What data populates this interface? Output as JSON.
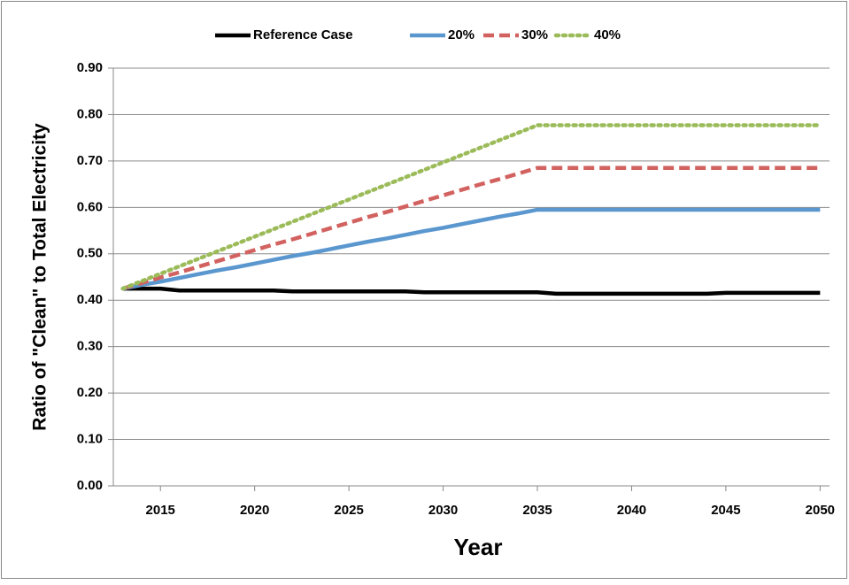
{
  "chart_data": {
    "type": "line",
    "x": [
      2013,
      2014,
      2015,
      2016,
      2017,
      2018,
      2019,
      2020,
      2021,
      2022,
      2023,
      2024,
      2025,
      2026,
      2027,
      2028,
      2029,
      2030,
      2031,
      2032,
      2033,
      2034,
      2035,
      2036,
      2037,
      2038,
      2039,
      2040,
      2041,
      2042,
      2043,
      2044,
      2045,
      2046,
      2047,
      2048,
      2049,
      2050
    ],
    "series": [
      {
        "name": "Reference Case",
        "color": "#000000",
        "style": "solid",
        "values": [
          0.425,
          0.425,
          0.425,
          0.421,
          0.421,
          0.421,
          0.421,
          0.421,
          0.421,
          0.419,
          0.419,
          0.419,
          0.419,
          0.419,
          0.419,
          0.419,
          0.417,
          0.417,
          0.417,
          0.417,
          0.417,
          0.417,
          0.417,
          0.414,
          0.414,
          0.414,
          0.414,
          0.414,
          0.414,
          0.414,
          0.414,
          0.414,
          0.416,
          0.416,
          0.416,
          0.416,
          0.416,
          0.416
        ]
      },
      {
        "name": "20%",
        "color": "#5b97cf",
        "style": "solid",
        "values": [
          0.425,
          0.433,
          0.44,
          0.448,
          0.456,
          0.464,
          0.471,
          0.479,
          0.487,
          0.495,
          0.502,
          0.51,
          0.518,
          0.526,
          0.533,
          0.541,
          0.549,
          0.556,
          0.564,
          0.572,
          0.58,
          0.587,
          0.595,
          0.595,
          0.595,
          0.595,
          0.595,
          0.595,
          0.595,
          0.595,
          0.595,
          0.595,
          0.595,
          0.595,
          0.595,
          0.595,
          0.595,
          0.595
        ]
      },
      {
        "name": "30%",
        "color": "#d2625f",
        "style": "dashed",
        "values": [
          0.425,
          0.437,
          0.449,
          0.46,
          0.472,
          0.484,
          0.496,
          0.508,
          0.52,
          0.531,
          0.543,
          0.555,
          0.567,
          0.579,
          0.59,
          0.602,
          0.614,
          0.626,
          0.638,
          0.65,
          0.661,
          0.673,
          0.685,
          0.685,
          0.685,
          0.685,
          0.685,
          0.685,
          0.685,
          0.685,
          0.685,
          0.685,
          0.685,
          0.685,
          0.685,
          0.685,
          0.685,
          0.685
        ]
      },
      {
        "name": "40%",
        "color": "#9bbb59",
        "style": "dotted",
        "values": [
          0.425,
          0.441,
          0.457,
          0.473,
          0.489,
          0.505,
          0.521,
          0.537,
          0.553,
          0.569,
          0.585,
          0.601,
          0.617,
          0.633,
          0.649,
          0.665,
          0.681,
          0.697,
          0.713,
          0.729,
          0.745,
          0.761,
          0.777,
          0.777,
          0.777,
          0.777,
          0.777,
          0.777,
          0.777,
          0.777,
          0.777,
          0.777,
          0.777,
          0.777,
          0.777,
          0.777,
          0.777,
          0.777
        ]
      }
    ],
    "xlabel": "Year",
    "ylabel": "Ratio of \"Clean\" to Total Electricity",
    "xlim": [
      2012.5,
      2050.5
    ],
    "xticks": [
      2015,
      2020,
      2025,
      2030,
      2035,
      2040,
      2045,
      2050
    ],
    "ylim": [
      0,
      0.9
    ],
    "yticks": [
      {
        "value": 0,
        "label": "0.00"
      },
      {
        "value": 0.1,
        "label": "0.10"
      },
      {
        "value": 0.2,
        "label": "0.20"
      },
      {
        "value": 0.3,
        "label": "0.30"
      },
      {
        "value": 0.4,
        "label": "0.40"
      },
      {
        "value": 0.5,
        "label": "0.50"
      },
      {
        "value": 0.6,
        "label": "0.60"
      },
      {
        "value": 0.7,
        "label": "0.70"
      },
      {
        "value": 0.8,
        "label": "0.80"
      },
      {
        "value": 0.9,
        "label": "0.90"
      }
    ],
    "grid": true,
    "legend": "top"
  }
}
